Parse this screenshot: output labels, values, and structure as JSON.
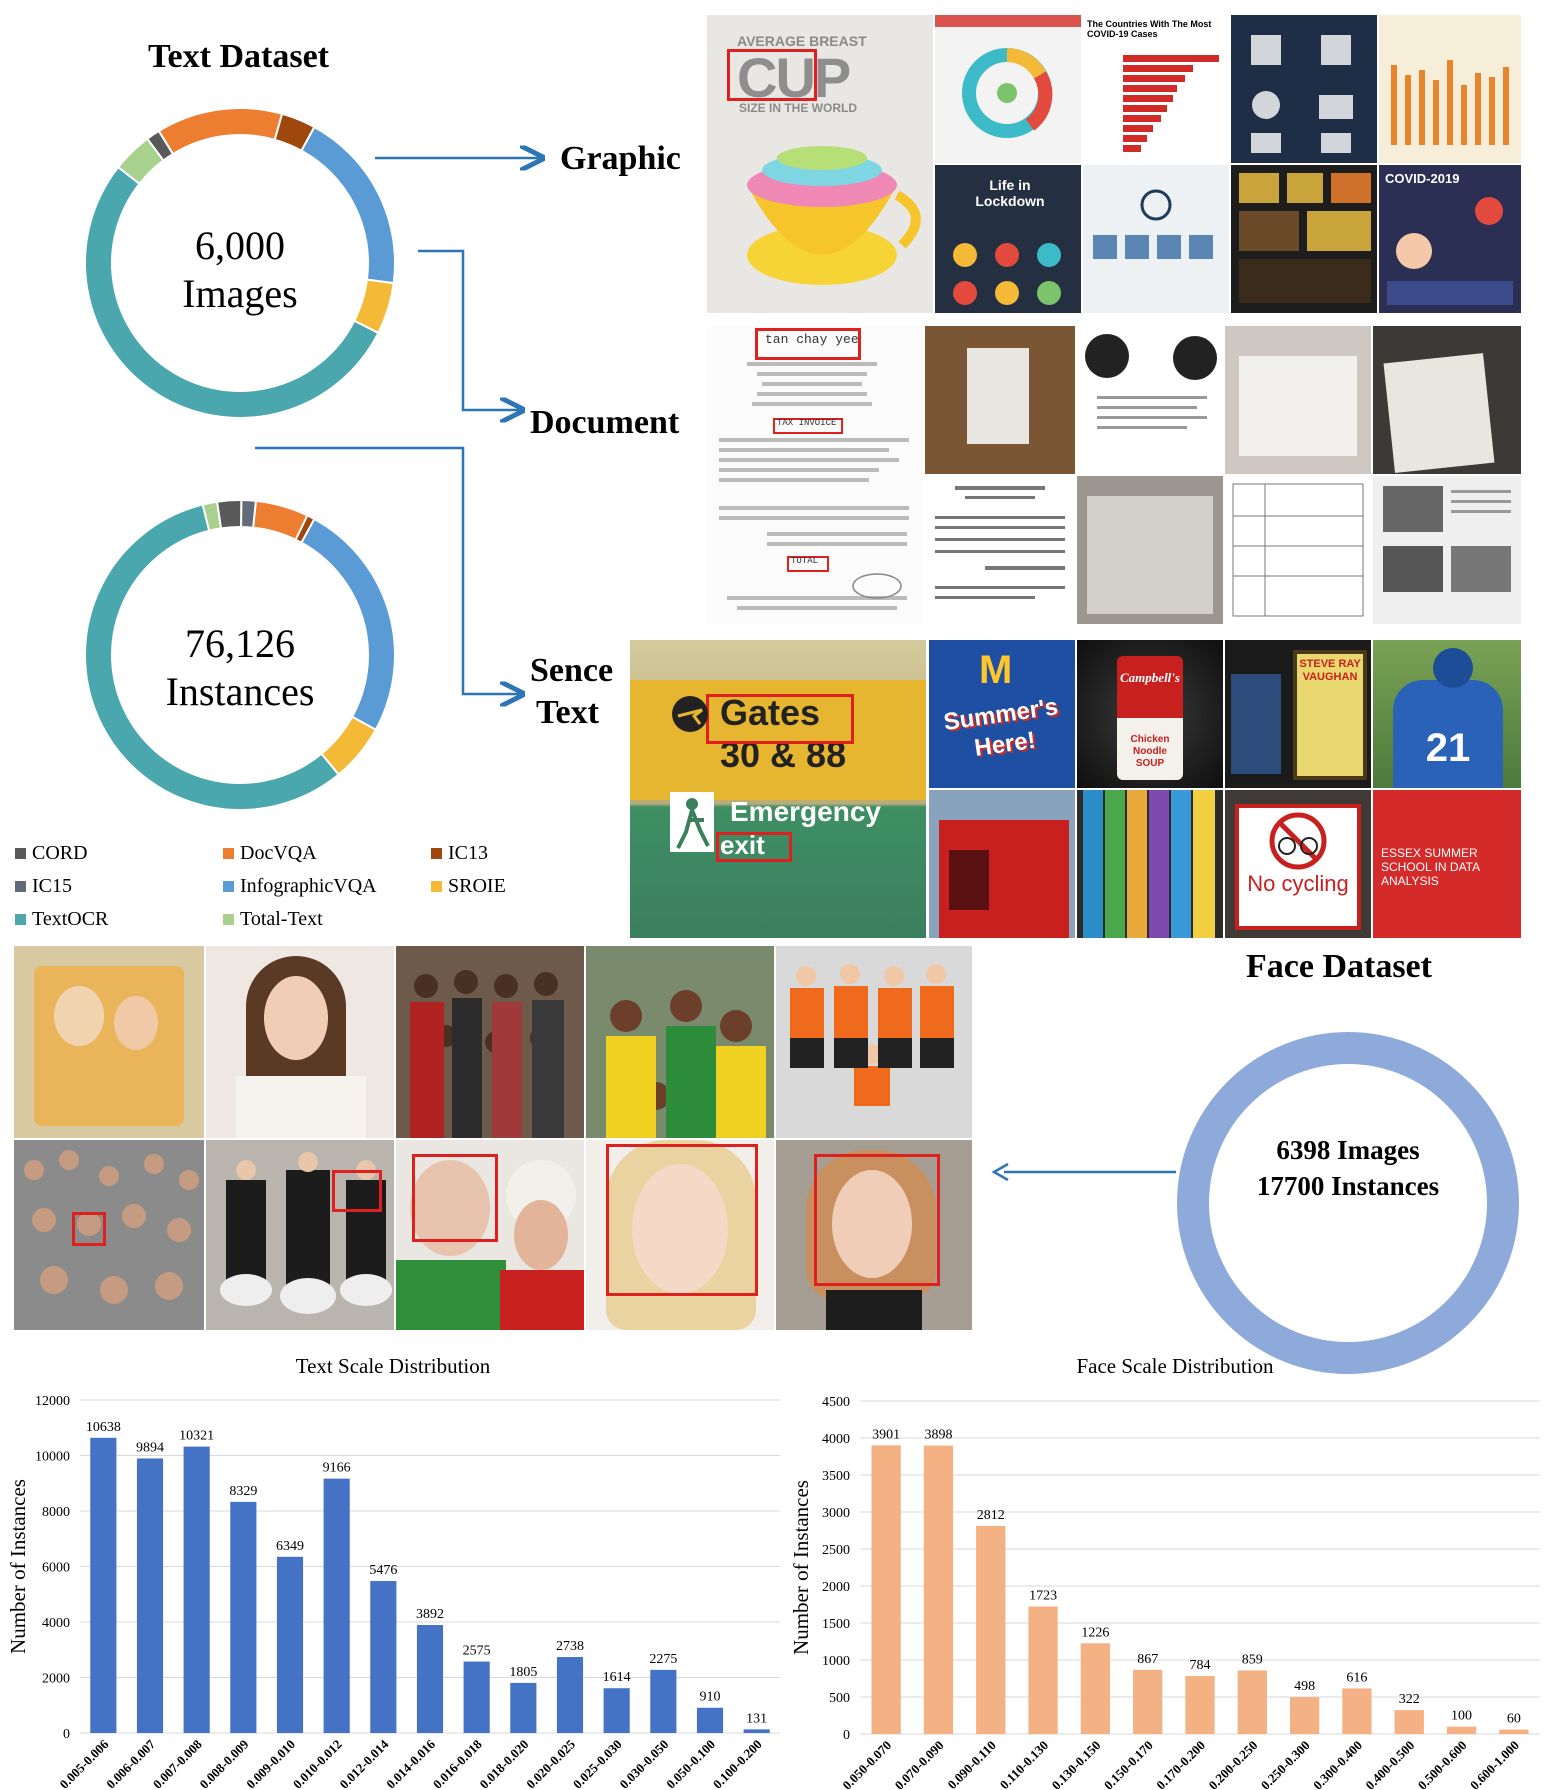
{
  "text_dataset": {
    "title": "Text Dataset",
    "images_count": "6,000",
    "images_label": "Images",
    "instances_count": "76,126",
    "instances_label": "Instances",
    "legend": [
      {
        "name": "CORD",
        "color": "#595959"
      },
      {
        "name": "DocVQA",
        "color": "#ed7d31"
      },
      {
        "name": "IC13",
        "color": "#9e480e"
      },
      {
        "name": "IC15",
        "color": "#636b7a"
      },
      {
        "name": "InfographicVQA",
        "color": "#5b9bd5"
      },
      {
        "name": "SROIE",
        "color": "#f4b936"
      },
      {
        "name": "TextOCR",
        "color": "#4aa7ad"
      },
      {
        "name": "Total-Text",
        "color": "#a9d18e"
      }
    ]
  },
  "categories": {
    "graphic": "Graphic",
    "document": "Document",
    "scene_line1": "Sence",
    "scene_line2": "Text"
  },
  "face_dataset": {
    "title": "Face Dataset",
    "line1": "6398 Images",
    "line2": "17700 Instances",
    "ring_color": "#8eaadb"
  },
  "sample_text": {
    "cup_line1": "AVERAGE BREAST",
    "cup_big": "CUP",
    "cup_line2": "SIZE IN THE WORLD",
    "covid_countries": "The Countries With The Most COVID-19 Cases",
    "covid_2019": "COVID-2019",
    "life_in": "Life in Lockdown",
    "receipt_name": "tan chay yee",
    "tax_invoice": "TAX INVOICE",
    "total": "TOTAL",
    "gates": "Gates",
    "gates_num": "30 & 88",
    "emergency": "Emergency",
    "exit": "exit",
    "summers": "Summer's Here!",
    "campbells": "Campbell's",
    "soup": "Chicken Noodle SOUP",
    "vaughan": "STEVE RAY VAUGHAN",
    "jersey": "21",
    "no_cycling": "No cycling",
    "essex": "ESSEX SUMMER SCHOOL IN DATA ANALYSIS"
  },
  "chart_data": [
    {
      "type": "pie",
      "title": "",
      "categories": [
        "CORD",
        "DocVQA",
        "IC13",
        "IC15",
        "InfographicVQA",
        "SROIE",
        "TextOCR",
        "Total-Text"
      ],
      "values": [
        1.2,
        11.0,
        3.0,
        0.0,
        16.0,
        4.5,
        44.5,
        3.5
      ],
      "note_series": "Text Dataset images"
    },
    {
      "type": "pie",
      "title": "",
      "categories": [
        "CORD",
        "DocVQA",
        "IC13",
        "IC15",
        "InfographicVQA",
        "SROIE",
        "TextOCR",
        "Total-Text"
      ],
      "values": [
        2.5,
        5.5,
        0.8,
        1.5,
        25.0,
        6.0,
        57.0,
        1.5
      ]
    },
    {
      "type": "bar",
      "title": "Text Scale Distribution",
      "xlabel": "",
      "ylabel": "Number of Instances",
      "categories": [
        "0.005-0.006",
        "0.006-0.007",
        "0.007-0.008",
        "0.008-0.009",
        "0.009-0.010",
        "0.010-0.012",
        "0.012-0.014",
        "0.014-0.016",
        "0.016-0.018",
        "0.018-0.020",
        "0.020-0.025",
        "0.025-0.030",
        "0.030-0.050",
        "0.050-0.100",
        "0.100-0.200"
      ],
      "values": [
        10638,
        9894,
        10321,
        8329,
        6349,
        9166,
        5476,
        3892,
        2575,
        1805,
        2738,
        1614,
        2275,
        910,
        131
      ],
      "ylim": [
        0,
        12000
      ],
      "yticks": [
        0,
        2000,
        4000,
        6000,
        8000,
        10000,
        12000
      ],
      "color": "#4472c4",
      "grid": true
    },
    {
      "type": "bar",
      "title": "Face Scale Distribution",
      "xlabel": "",
      "ylabel": "Number of Instances",
      "categories": [
        "0.050-0.070",
        "0.070-0.090",
        "0.090-0.110",
        "0.110-0.130",
        "0.130-0.150",
        "0.150-0.170",
        "0.170-0.200",
        "0.200-0.250",
        "0.250-0.300",
        "0.300-0.400",
        "0.400-0.500",
        "0.500-0.600",
        "0.600-1.000"
      ],
      "values": [
        3901,
        3898,
        2812,
        1723,
        1226,
        867,
        784,
        859,
        498,
        616,
        322,
        100,
        60
      ],
      "ylim": [
        0,
        4500
      ],
      "yticks": [
        0,
        500,
        1000,
        1500,
        2000,
        2500,
        3000,
        3500,
        4000,
        4500
      ],
      "color": "#f4b183",
      "grid": true
    }
  ]
}
